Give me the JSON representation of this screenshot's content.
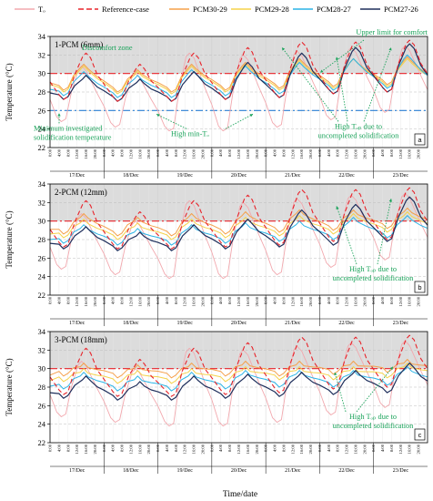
{
  "figure": {
    "x_axis_label": "Time/date",
    "y_axis_label": "Temperature (°C)"
  },
  "legend": [
    {
      "label": "Tₒ",
      "color": "#f2a8ae",
      "dash": "solid"
    },
    {
      "label": "Reference-case",
      "color": "#e8232a",
      "dash": "dashed"
    },
    {
      "label": "PCM30-29",
      "color": "#f5a04a",
      "dash": "solid"
    },
    {
      "label": "PCM29-28",
      "color": "#f5d24a",
      "dash": "solid"
    },
    {
      "label": "PCM28-27",
      "color": "#2ab4e6",
      "dash": "solid"
    },
    {
      "label": "PCM27-26",
      "color": "#1f2f5c",
      "dash": "solid"
    }
  ],
  "chart_data": [
    {
      "type": "line",
      "title": "1-PCM (6mm)",
      "panel_label": "a",
      "xlabel": "Time/date",
      "ylabel": "Temperature (°C)",
      "ylim": [
        22,
        34
      ],
      "yticks": [
        22,
        24,
        26,
        28,
        30,
        32,
        34
      ],
      "x_tick_labels": [
        "0:00",
        "4:00",
        "8:00",
        "12:00",
        "16:00",
        "20:00"
      ],
      "days": [
        "17/Dec",
        "18/Dec",
        "19/Dec",
        "20/Dec",
        "21/Dec",
        "22/Dec",
        "23/Dec"
      ],
      "x_unit": "hours since 17/Dec 0:00",
      "xlim": [
        0,
        168
      ],
      "grid": true,
      "discomfort_zone": [
        30,
        34
      ],
      "reference_lines": [
        {
          "name": "Upper limit for comfort",
          "y": 30,
          "color": "#e8232a",
          "style": "dash-dot"
        },
        {
          "name": "Minimum investigated solidification temperature",
          "y": 26,
          "color": "#2a7fd4",
          "style": "dash-dot"
        }
      ],
      "annotations": [
        {
          "text": "Discomfort zone"
        },
        {
          "text": "Upper limit for comfort"
        },
        {
          "text": "Minimum investigated solidification temperature"
        },
        {
          "text": "High min-Tₒ"
        },
        {
          "text": "High Tₒₚ due to uncompleted solidification"
        }
      ],
      "daily_extremes": {
        "To": {
          "min": [
            24.8,
            24.2,
            23.8,
            23.8,
            24.2,
            25.0,
            25.8
          ],
          "max": [
            30.8,
            30.0,
            32.2,
            32.0,
            32.4,
            32.8,
            33.0
          ]
        },
        "Reference-case": {
          "min": [
            27.2,
            27.0,
            27.0,
            27.2,
            27.4,
            27.8,
            28.0
          ],
          "max": [
            32.2,
            31.0,
            32.2,
            32.8,
            33.4,
            33.4,
            33.6
          ]
        },
        "PCM30-29": {
          "min": [
            28.2,
            28.0,
            28.0,
            28.2,
            28.4,
            28.6,
            28.8
          ],
          "max": [
            31.0,
            30.4,
            31.0,
            31.2,
            31.6,
            31.6,
            31.8
          ]
        },
        "PCM29-28": {
          "min": [
            28.0,
            27.8,
            27.8,
            28.0,
            28.2,
            28.4,
            28.6
          ],
          "max": [
            30.8,
            30.2,
            30.8,
            31.0,
            31.4,
            31.6,
            31.6
          ]
        },
        "PCM28-27": {
          "min": [
            27.6,
            27.4,
            27.4,
            27.6,
            27.8,
            28.2,
            28.4
          ],
          "max": [
            30.2,
            29.8,
            30.4,
            30.8,
            31.2,
            31.6,
            32.0
          ]
        },
        "PCM27-26": {
          "min": [
            27.2,
            27.0,
            27.0,
            27.2,
            27.4,
            27.8,
            28.0
          ],
          "max": [
            29.8,
            29.4,
            30.2,
            31.2,
            32.2,
            32.8,
            33.2
          ]
        }
      }
    },
    {
      "type": "line",
      "title": "2-PCM (12mm)",
      "panel_label": "b",
      "xlabel": "Time/date",
      "ylabel": "Temperature (°C)",
      "ylim": [
        22,
        34
      ],
      "yticks": [
        22,
        24,
        26,
        28,
        30,
        32,
        34
      ],
      "x_tick_labels": [
        "0:00",
        "4:00",
        "8:00",
        "12:00",
        "16:00",
        "20:00"
      ],
      "days": [
        "17/Dec",
        "18/Dec",
        "19/Dec",
        "20/Dec",
        "21/Dec",
        "22/Dec",
        "23/Dec"
      ],
      "x_unit": "hours since 17/Dec 0:00",
      "xlim": [
        0,
        168
      ],
      "grid": true,
      "discomfort_zone": [
        30,
        34
      ],
      "reference_lines": [
        {
          "name": "Upper limit for comfort",
          "y": 30,
          "color": "#e8232a",
          "style": "dash-dot"
        }
      ],
      "annotations": [
        {
          "text": "High Tₒₚ due to uncompleted solidification"
        }
      ],
      "daily_extremes": {
        "To": {
          "min": [
            24.8,
            24.2,
            23.8,
            23.8,
            24.2,
            25.0,
            25.8
          ],
          "max": [
            30.8,
            30.0,
            32.2,
            32.0,
            32.4,
            32.8,
            33.0
          ]
        },
        "Reference-case": {
          "min": [
            27.2,
            27.0,
            27.0,
            27.2,
            27.4,
            27.8,
            28.0
          ],
          "max": [
            32.2,
            31.0,
            32.2,
            32.8,
            33.4,
            33.4,
            33.6
          ]
        },
        "PCM30-29": {
          "min": [
            28.6,
            28.4,
            28.4,
            28.6,
            28.8,
            29.0,
            29.2
          ],
          "max": [
            30.8,
            30.4,
            30.8,
            31.0,
            31.2,
            31.2,
            31.4
          ]
        },
        "PCM29-28": {
          "min": [
            28.2,
            28.0,
            28.0,
            28.2,
            28.4,
            28.6,
            28.8
          ],
          "max": [
            30.2,
            29.8,
            30.2,
            30.4,
            30.6,
            30.8,
            31.0
          ]
        },
        "PCM28-27": {
          "min": [
            27.6,
            27.4,
            27.4,
            27.6,
            27.8,
            28.0,
            28.2
          ],
          "max": [
            29.6,
            29.2,
            29.6,
            29.8,
            30.0,
            30.4,
            30.6
          ]
        },
        "PCM27-26": {
          "min": [
            27.0,
            26.8,
            26.8,
            27.0,
            27.2,
            27.4,
            27.8
          ],
          "max": [
            29.4,
            28.8,
            29.6,
            30.2,
            31.2,
            31.8,
            32.6
          ]
        }
      }
    },
    {
      "type": "line",
      "title": "3-PCM (18mm)",
      "panel_label": "c",
      "xlabel": "Time/date",
      "ylabel": "Temperature (°C)",
      "ylim": [
        22,
        34
      ],
      "yticks": [
        22,
        24,
        26,
        28,
        30,
        32,
        34
      ],
      "x_tick_labels": [
        "0:00",
        "4:00",
        "8:00",
        "12:00",
        "16:00",
        "20:00"
      ],
      "days": [
        "17/Dec",
        "18/Dec",
        "19/Dec",
        "20/Dec",
        "21/Dec",
        "22/Dec",
        "23/Dec"
      ],
      "x_unit": "hours since 17/Dec 0:00",
      "xlim": [
        0,
        168
      ],
      "grid": true,
      "discomfort_zone": [
        30,
        34
      ],
      "reference_lines": [
        {
          "name": "Upper limit for comfort",
          "y": 30,
          "color": "#e8232a",
          "style": "dash-dot"
        }
      ],
      "annotations": [
        {
          "text": "High Tₒₚ due to uncompleted solidification"
        }
      ],
      "daily_extremes": {
        "To": {
          "min": [
            24.8,
            24.2,
            23.8,
            23.8,
            24.2,
            25.0,
            25.8
          ],
          "max": [
            30.8,
            30.0,
            32.2,
            32.0,
            32.4,
            32.8,
            33.0
          ]
        },
        "Reference-case": {
          "min": [
            27.2,
            27.0,
            27.0,
            27.2,
            27.4,
            27.8,
            28.0
          ],
          "max": [
            32.2,
            31.0,
            32.2,
            32.8,
            33.4,
            33.4,
            33.6
          ]
        },
        "PCM30-29": {
          "min": [
            29.2,
            29.0,
            29.0,
            29.2,
            29.2,
            29.4,
            29.6
          ],
          "max": [
            30.6,
            30.4,
            30.6,
            30.8,
            30.8,
            30.8,
            31.0
          ]
        },
        "PCM29-28": {
          "min": [
            28.6,
            28.4,
            28.4,
            28.6,
            28.8,
            28.8,
            29.0
          ],
          "max": [
            30.0,
            29.8,
            30.0,
            30.2,
            30.2,
            30.2,
            30.6
          ]
        },
        "PCM28-27": {
          "min": [
            27.8,
            27.6,
            27.6,
            27.8,
            28.0,
            28.0,
            28.2
          ],
          "max": [
            29.6,
            29.2,
            29.6,
            29.8,
            29.8,
            29.8,
            30.2
          ]
        },
        "PCM27-26": {
          "min": [
            26.8,
            26.6,
            26.6,
            26.8,
            27.0,
            27.2,
            27.4
          ],
          "max": [
            29.2,
            28.6,
            29.2,
            29.4,
            29.6,
            29.8,
            30.6
          ]
        }
      }
    }
  ]
}
